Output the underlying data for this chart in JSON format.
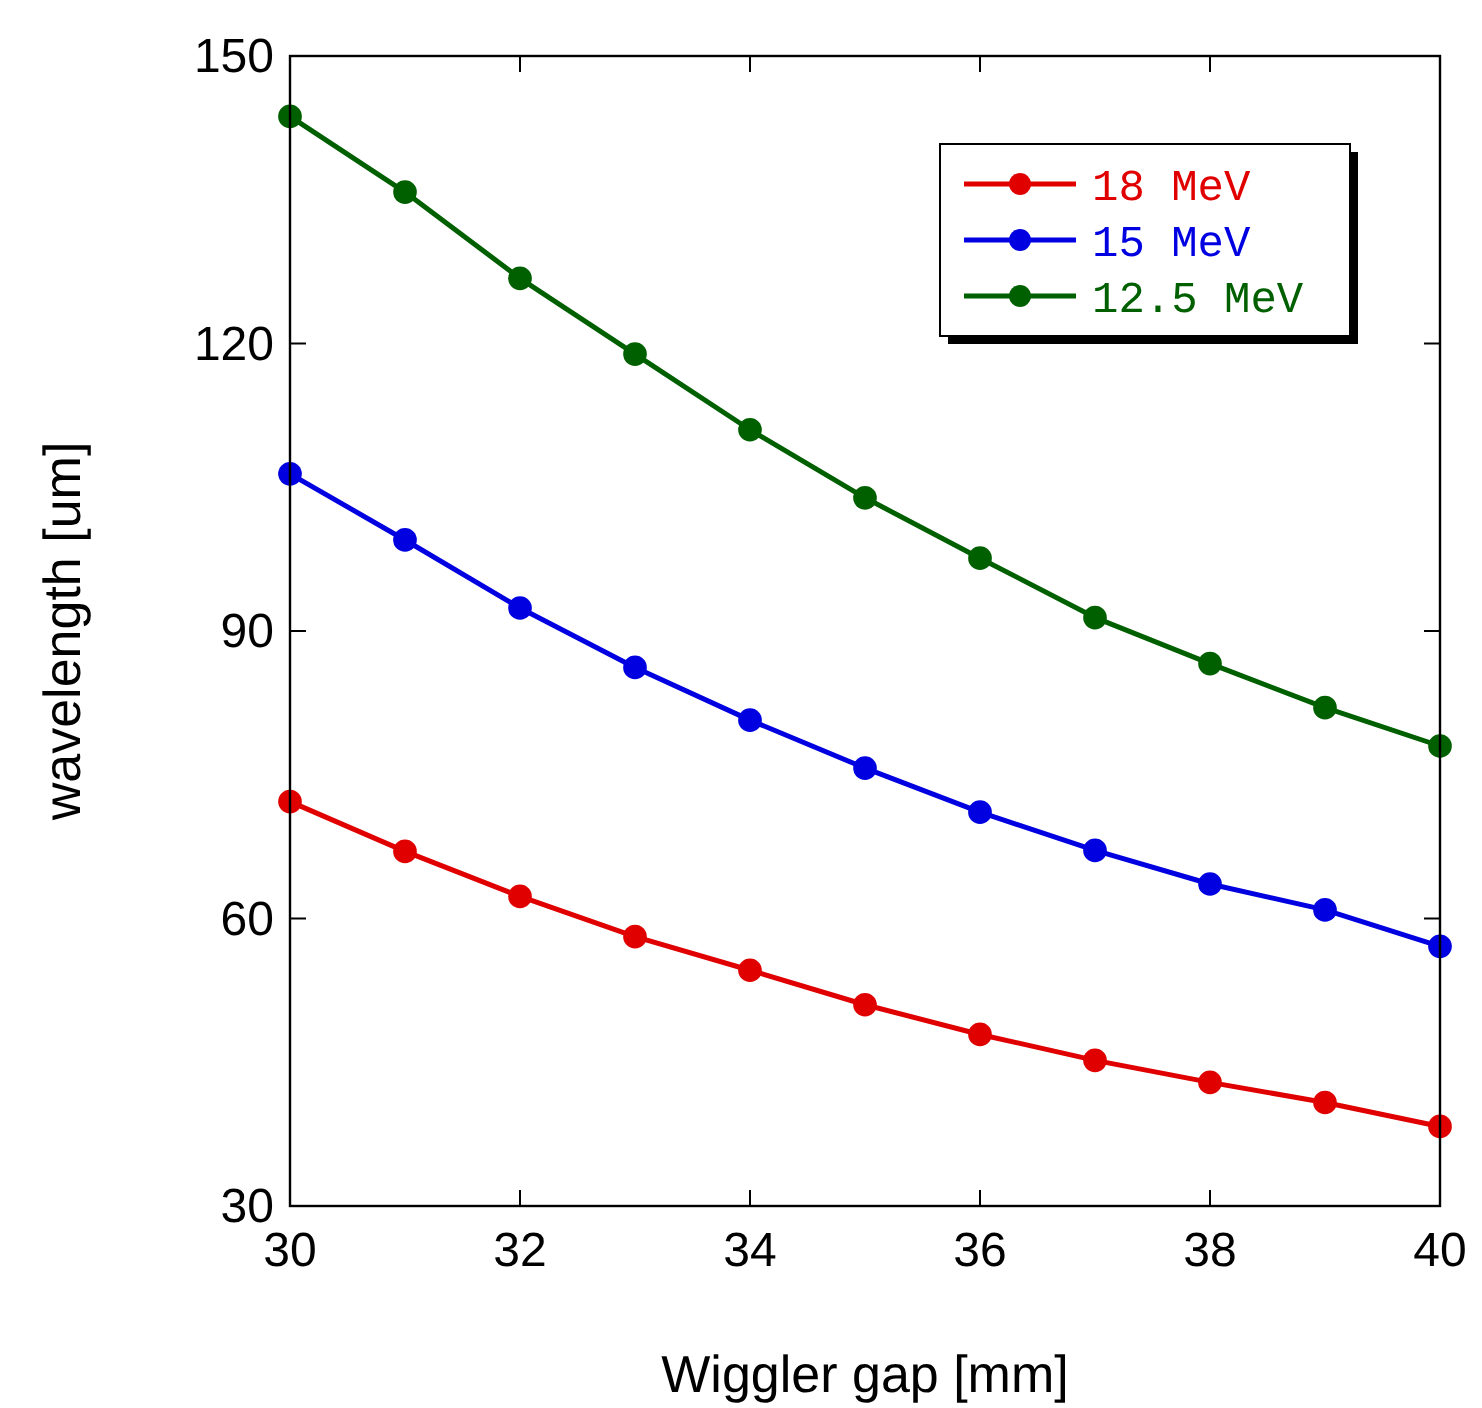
{
  "chart_data": {
    "type": "line",
    "xlabel": "Wiggler gap [mm]",
    "ylabel": "wavelength [um]",
    "x": [
      30,
      31,
      32,
      33,
      34,
      35,
      36,
      37,
      38,
      39,
      40
    ],
    "xlim": [
      30,
      40
    ],
    "xticks": [
      30,
      32,
      34,
      36,
      38,
      40
    ],
    "ylim": [
      30,
      150
    ],
    "yticks": [
      30,
      60,
      90,
      120,
      150
    ],
    "grid": false,
    "legend": "top right",
    "marker": "circle",
    "line_style": "solid",
    "series": [
      {
        "name": "18 MeV",
        "color": "#e00000",
        "values": [
          72.2,
          67,
          62.3,
          58.1,
          54.6,
          51,
          47.9,
          45.2,
          42.9,
          40.8,
          38.3
        ]
      },
      {
        "name": "15 MeV",
        "color": "#0000e0",
        "values": [
          106.4,
          99.5,
          92.4,
          86.2,
          80.7,
          75.7,
          71.1,
          67.1,
          63.6,
          60.9,
          57.1
        ]
      },
      {
        "name": "12.5 MeV",
        "color": "#006000",
        "values": [
          143.7,
          135.8,
          126.8,
          118.9,
          111,
          103.9,
          97.6,
          91.4,
          86.6,
          82,
          78
        ]
      }
    ]
  }
}
